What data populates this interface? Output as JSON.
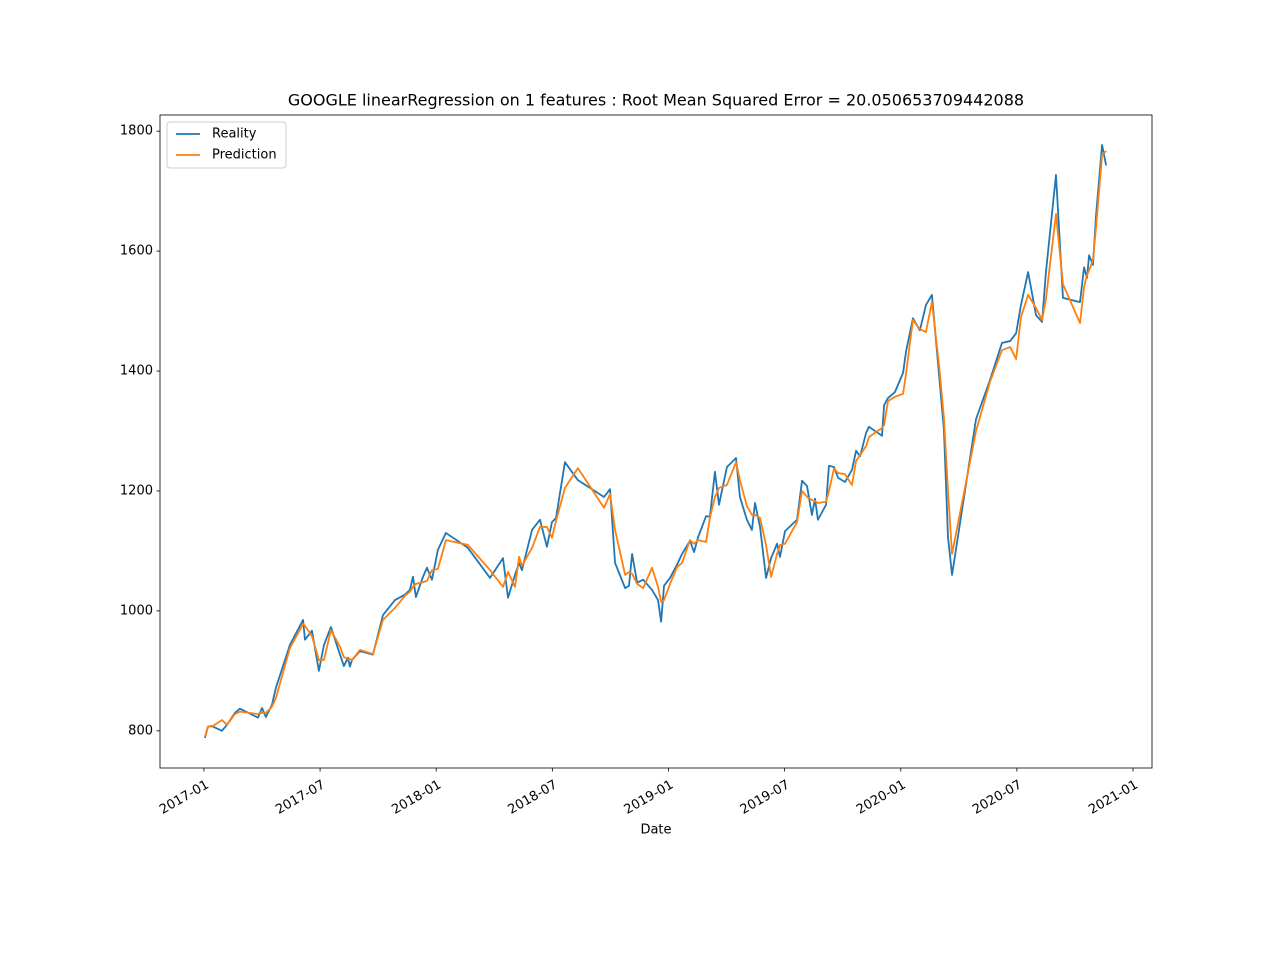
{
  "chart_data": {
    "type": "line",
    "title": "GOOGLE linearRegression on 1 features : Root Mean Squared Error = 20.050653709442088",
    "x_label": "Date",
    "x": [
      0.05,
      0.21,
      0.41,
      0.93,
      1.19,
      1.6,
      1.86,
      2.79,
      3.0,
      3.2,
      3.51,
      3.72,
      4.44,
      5.12,
      5.22,
      5.58,
      5.94,
      6.2,
      6.56,
      7.03,
      7.23,
      7.44,
      7.54,
      7.65,
      8.06,
      8.73,
      9.25,
      9.87,
      10.38,
      10.64,
      10.8,
      10.95,
      11.32,
      11.52,
      11.78,
      12.09,
      12.5,
      13.64,
      14.78,
      15.45,
      15.71,
      16.07,
      16.28,
      16.43,
      16.95,
      17.36,
      17.72,
      17.98,
      18.19,
      18.65,
      19.32,
      20.67,
      20.98,
      21.24,
      21.76,
      21.96,
      22.12,
      22.38,
      22.69,
      23.15,
      23.46,
      23.62,
      23.77,
      24.08,
      24.44,
      24.7,
      25.11,
      25.32,
      25.52,
      25.94,
      26.14,
      26.4,
      26.61,
      27.02,
      27.49,
      27.69,
      28.05,
      28.31,
      28.47,
      28.73,
      29.04,
      29.3,
      29.61,
      29.76,
      30.02,
      30.64,
      30.9,
      31.16,
      31.41,
      31.57,
      31.72,
      32.14,
      32.29,
      32.55,
      32.76,
      33.12,
      33.48,
      33.69,
      33.9,
      34.21,
      34.36,
      35.03,
      35.14,
      35.34,
      35.7,
      36.12,
      36.27,
      36.63,
      36.99,
      37.3,
      37.61,
      37.98,
      38.23,
      38.44,
      38.65,
      39.89,
      40.61,
      41.23,
      41.65,
      41.96,
      42.21,
      42.58,
      42.99,
      43.3,
      43.5,
      44.02,
      44.38,
      45.26,
      45.47,
      45.62,
      45.73,
      45.93,
      46.09,
      46.4,
      46.61
    ],
    "series": [
      {
        "name": "Reality",
        "color": "#1f77b4",
        "values": [
          788,
          807,
          808,
          800,
          810,
          830,
          837,
          822,
          838,
          823,
          843,
          872,
          943,
          985,
          952,
          967,
          900,
          943,
          973,
          927,
          908,
          922,
          907,
          918,
          933,
          927,
          993,
          1018,
          1027,
          1035,
          1057,
          1023,
          1057,
          1072,
          1052,
          1102,
          1130,
          1105,
          1055,
          1088,
          1022,
          1060,
          1080,
          1068,
          1135,
          1152,
          1107,
          1148,
          1155,
          1248,
          1218,
          1190,
          1203,
          1080,
          1038,
          1042,
          1095,
          1047,
          1052,
          1035,
          1018,
          982,
          1042,
          1055,
          1077,
          1095,
          1117,
          1098,
          1122,
          1158,
          1157,
          1232,
          1177,
          1240,
          1255,
          1190,
          1152,
          1135,
          1180,
          1140,
          1055,
          1088,
          1112,
          1090,
          1133,
          1152,
          1217,
          1208,
          1160,
          1187,
          1152,
          1177,
          1242,
          1240,
          1222,
          1215,
          1235,
          1267,
          1258,
          1297,
          1307,
          1292,
          1343,
          1355,
          1365,
          1397,
          1432,
          1488,
          1468,
          1510,
          1527,
          1393,
          1302,
          1123,
          1060,
          1320,
          1385,
          1447,
          1450,
          1463,
          1510,
          1565,
          1493,
          1482,
          1565,
          1727,
          1522,
          1515,
          1573,
          1555,
          1593,
          1577,
          1660,
          1777,
          1743
        ]
      },
      {
        "name": "Prediction",
        "color": "#ff7f0e",
        "values": [
          790,
          807,
          807,
          818,
          810,
          828,
          832,
          828,
          830,
          830,
          840,
          855,
          938,
          978,
          975,
          958,
          918,
          918,
          968,
          940,
          923,
          920,
          920,
          918,
          935,
          928,
          985,
          1005,
          1025,
          1032,
          1040,
          1045,
          1048,
          1050,
          1068,
          1070,
          1118,
          1110,
          1068,
          1040,
          1065,
          1040,
          1090,
          1075,
          1105,
          1140,
          1140,
          1122,
          1150,
          1205,
          1238,
          1172,
          1195,
          1135,
          1060,
          1065,
          1062,
          1045,
          1038,
          1072,
          1040,
          1015,
          1018,
          1045,
          1073,
          1080,
          1118,
          1112,
          1118,
          1115,
          1155,
          1190,
          1205,
          1210,
          1248,
          1218,
          1175,
          1160,
          1160,
          1155,
          1110,
          1057,
          1095,
          1110,
          1112,
          1148,
          1200,
          1190,
          1185,
          1183,
          1180,
          1182,
          1200,
          1237,
          1230,
          1228,
          1210,
          1250,
          1260,
          1275,
          1290,
          1305,
          1310,
          1350,
          1357,
          1362,
          1395,
          1485,
          1470,
          1465,
          1515,
          1410,
          1322,
          1200,
          1095,
          1300,
          1382,
          1435,
          1440,
          1420,
          1490,
          1527,
          1505,
          1485,
          1520,
          1662,
          1545,
          1480,
          1540,
          1560,
          1568,
          1585,
          1640,
          1760,
          1767
        ]
      }
    ],
    "xlim": [
      -2.27,
      48.98
    ],
    "xticks": [
      {
        "value": 0,
        "label": "2017-01"
      },
      {
        "value": 6,
        "label": "2017-07"
      },
      {
        "value": 12,
        "label": "2018-01"
      },
      {
        "value": 18,
        "label": "2018-07"
      },
      {
        "value": 24,
        "label": "2019-01"
      },
      {
        "value": 30,
        "label": "2019-07"
      },
      {
        "value": 36,
        "label": "2020-01"
      },
      {
        "value": 42,
        "label": "2020-07"
      },
      {
        "value": 48,
        "label": "2021-01"
      }
    ],
    "ylim": [
      738,
      1827
    ],
    "yticks": [
      800,
      1000,
      1200,
      1400,
      1600,
      1800
    ],
    "legend": "upper left"
  }
}
